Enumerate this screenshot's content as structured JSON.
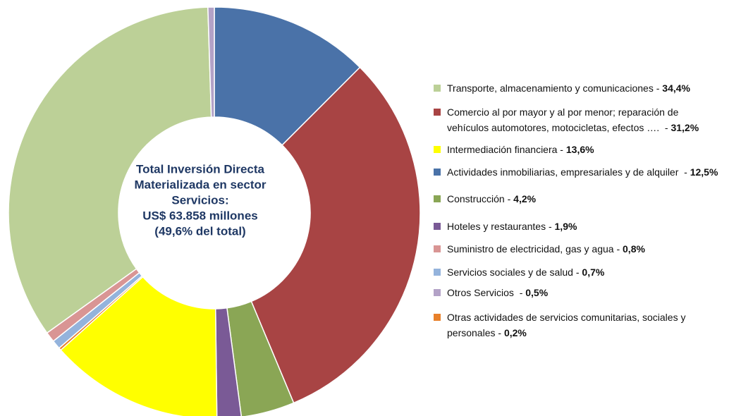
{
  "chart_data": {
    "type": "donut",
    "center_text": [
      "Total Inversión Directa",
      "Materializada en sector",
      "Servicios:",
      "US$ 63.858 millones",
      "(49,6%  del total)"
    ],
    "categories": [
      "Actividades inmobiliarias, empresariales y de alquiler  -",
      "Comercio al por mayor y al por menor; reparación de vehículos automotores, motocicletas, efectos ….  -",
      "Construcción -",
      "Hoteles y restaurantes -",
      "Intermediación financiera -",
      "Otras actividades de servicios comunitarias, sociales y personales -",
      "Servicios sociales y de salud -",
      "Suministro de electricidad, gas y agua -",
      "Transporte, almacenamiento y comunicaciones -",
      "Otros Servicios  -"
    ],
    "values": [
      12.5,
      31.2,
      4.2,
      1.9,
      13.6,
      0.2,
      0.7,
      0.8,
      34.4,
      0.5
    ],
    "value_labels": [
      "12,5%",
      "31,2%",
      "4,2%",
      "1,9%",
      "13,6%",
      "0,2%",
      "0,7%",
      "0,8%",
      "34,4%",
      "0,5%"
    ],
    "colors": [
      "#4a72a8",
      "#a84444",
      "#8aa655",
      "#7a5a96",
      "#ffff00",
      "#e8802a",
      "#94b3dc",
      "#d99594",
      "#bcd097",
      "#b3a2c7"
    ]
  }
}
